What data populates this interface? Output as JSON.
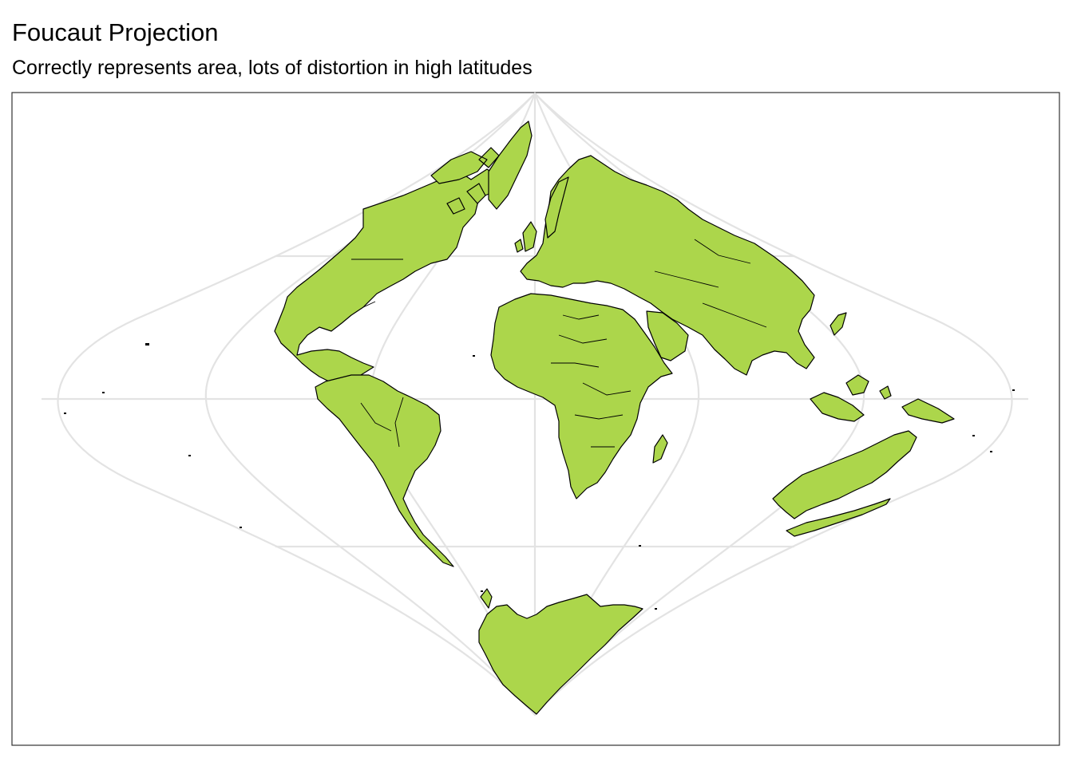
{
  "header": {
    "title": "Foucaut Projection",
    "subtitle": "Correctly represents area, lots of distortion in high latitudes"
  },
  "map": {
    "projection": "Foucaut",
    "graticule_color": "#e3e3e3",
    "land_color": "#acd64b",
    "border_color": "#000000",
    "frame_color": "#333333"
  }
}
